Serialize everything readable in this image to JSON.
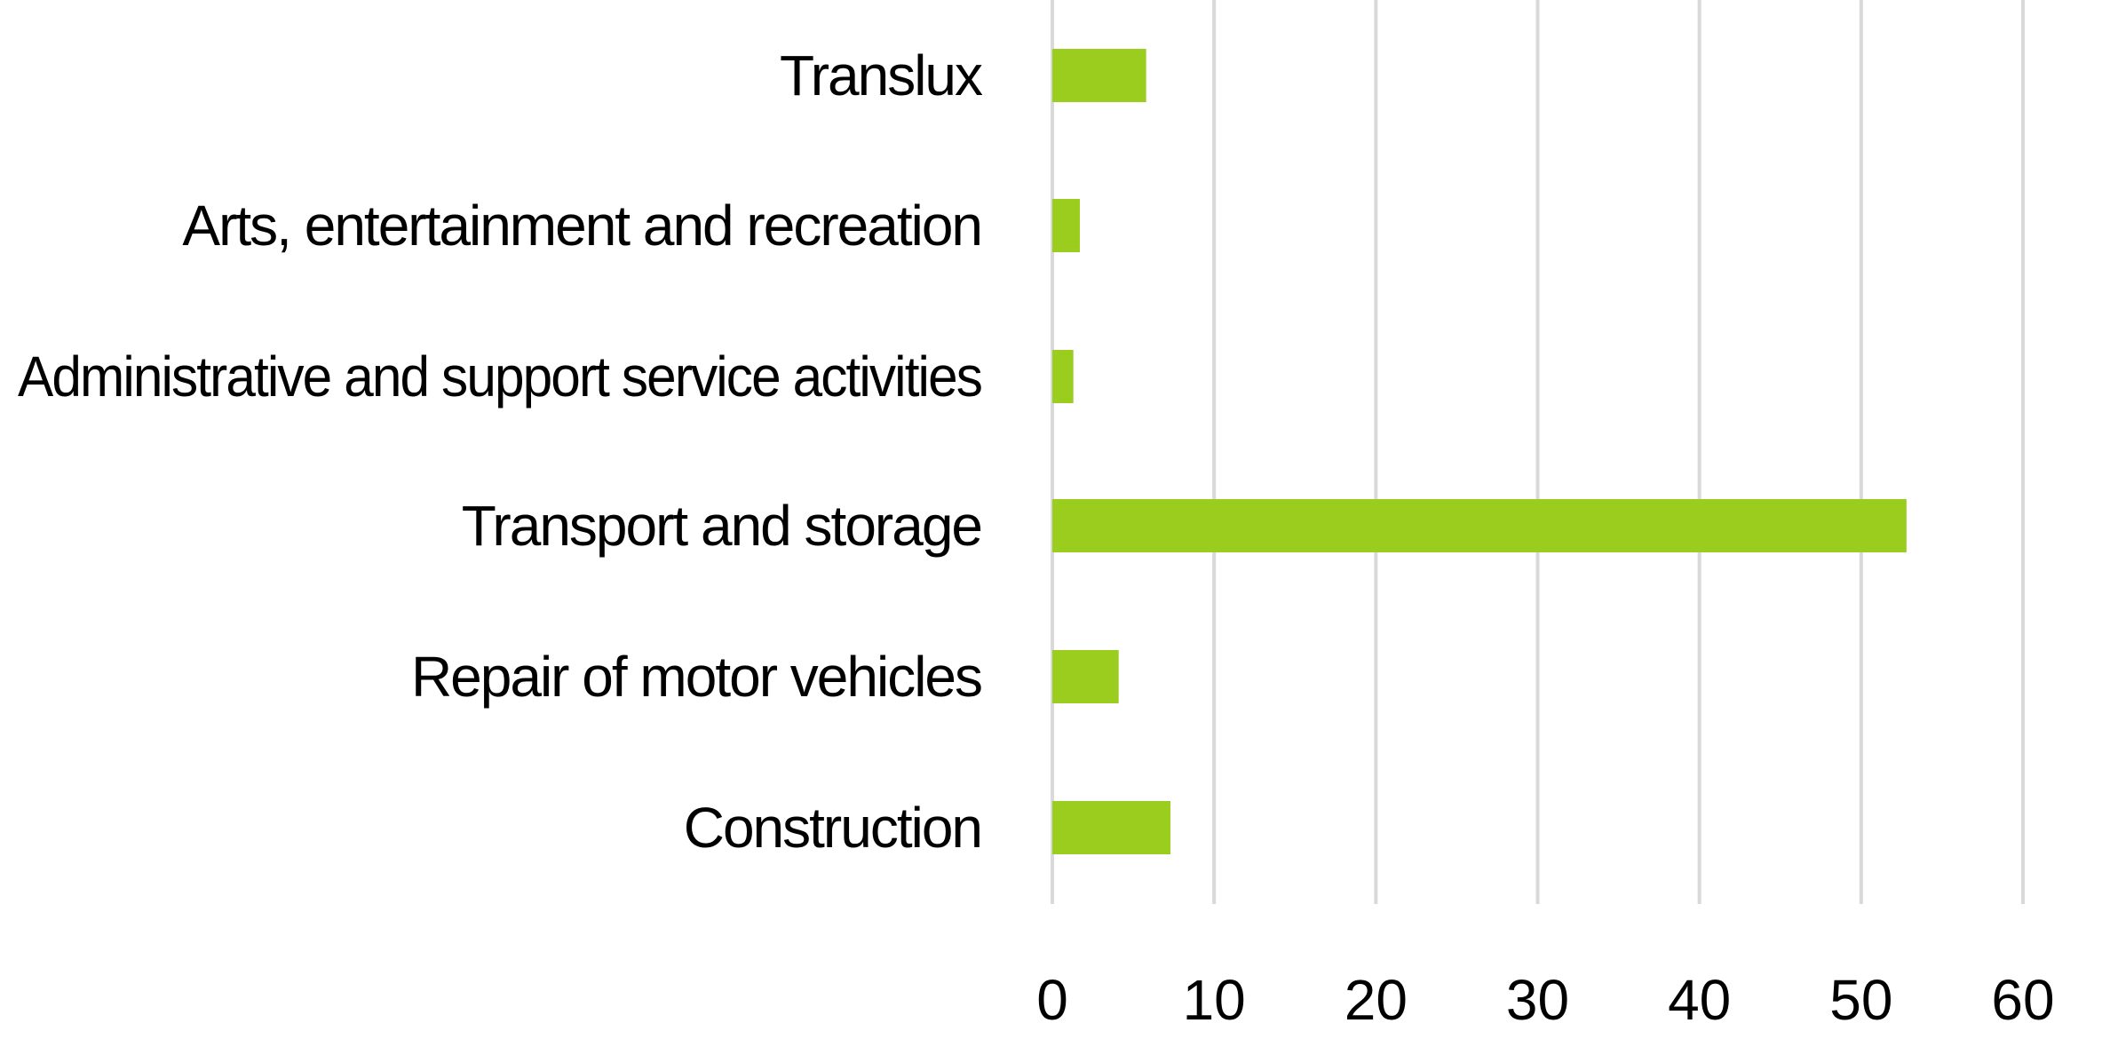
{
  "chart_data": {
    "type": "bar",
    "orientation": "horizontal",
    "title": "",
    "xlabel": "",
    "ylabel": "",
    "categories": [
      "Translux",
      "Arts, entertainment and recreation",
      "Administrative and support service activities",
      "Transport and storage",
      "Repair of motor vehicles",
      "Construction"
    ],
    "values": [
      5.8,
      1.7,
      1.3,
      52.8,
      4.1,
      7.3
    ],
    "xlim": [
      0,
      60
    ],
    "xticks": [
      "0",
      "10",
      "20",
      "30",
      "40",
      "50",
      "60"
    ],
    "grid": "vertical",
    "legend": "none",
    "bar_color": "#9ACD1E",
    "grid_color": "#D9D9D9"
  }
}
